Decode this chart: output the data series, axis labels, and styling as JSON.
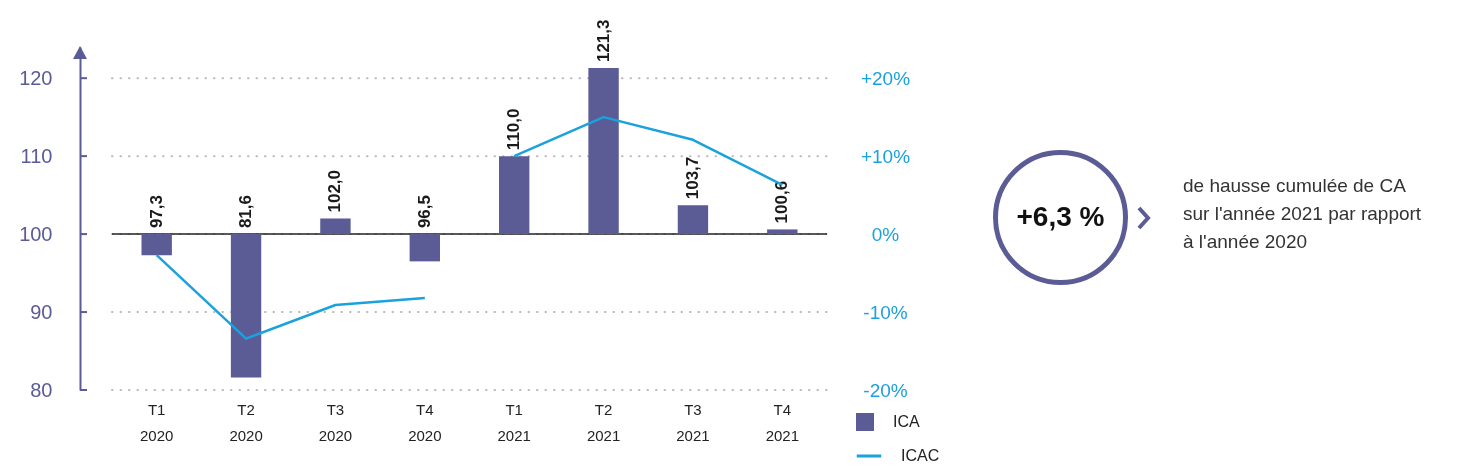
{
  "chart_data": {
    "type": "bar",
    "categories": [
      "T1 2020",
      "T2 2020",
      "T3 2020",
      "T4 2020",
      "T1 2021",
      "T2 2021",
      "T3 2021",
      "T4 2021"
    ],
    "series": [
      {
        "name": "ICA",
        "color": "#5b5b96",
        "base": [
          100,
          100,
          100,
          100,
          100,
          100,
          100,
          100
        ],
        "values": [
          -2.7,
          -18.4,
          2.0,
          -3.5,
          10.0,
          21.3,
          3.7,
          0.6
        ],
        "value_labels": [
          "97,3",
          "81,6",
          "102,0",
          "96,5",
          "110,0",
          "121,3",
          "103,7",
          "100,6"
        ]
      },
      {
        "name": "ICAC",
        "type": "line",
        "axis": "y2",
        "color": "#1ba1dc",
        "values": [
          -2.7,
          -13.4,
          -9.1,
          -8.2,
          null,
          null,
          null,
          null
        ]
      },
      {
        "type": "line",
        "axis": "y2",
        "color": "#1ba1dc",
        "values": [
          null,
          null,
          null,
          null,
          10.0,
          15.0,
          12.1,
          6.3
        ]
      }
    ],
    "ylim": [
      80,
      124
    ],
    "yticks": [
      80,
      90,
      100,
      110,
      120
    ],
    "y2lim": [
      -20,
      20
    ],
    "y2ticks": [
      {
        "value": -20,
        "label": "-20%"
      },
      {
        "value": -10,
        "label": "-10%"
      },
      {
        "value": 0,
        "label": "0%"
      },
      {
        "value": 10,
        "label": "+10%"
      },
      {
        "value": 20,
        "label": "+20%"
      }
    ],
    "ref_lines": [
      {
        "axis": "y",
        "value": 100,
        "color": "#222222"
      }
    ],
    "grid": "y",
    "legend": "bottom right",
    "annotations": [
      "+6,3 %",
      "de hausse cumulée de CA sur l'année 2021 par rapport à l'année 2020"
    ]
  }
}
